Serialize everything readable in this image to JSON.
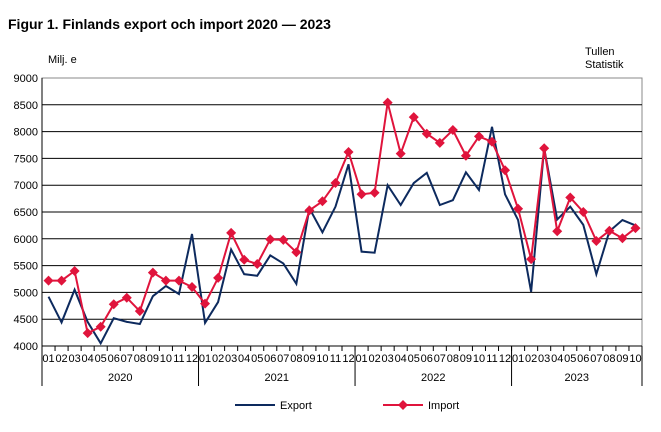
{
  "chart_data": {
    "type": "line",
    "title": "Figur 1. Finlands export och import 2020 — 2023",
    "ylabel": "Milj. e",
    "source": [
      "Tullen",
      "Statistik"
    ],
    "ylim": [
      4000,
      9000
    ],
    "yticks": [
      4000,
      4500,
      5000,
      5500,
      6000,
      6500,
      7000,
      7500,
      8000,
      8500,
      9000
    ],
    "years": [
      "2020",
      "2021",
      "2022",
      "2023"
    ],
    "months_per_year": [
      12,
      12,
      12,
      10
    ],
    "x": [
      "01",
      "02",
      "03",
      "04",
      "05",
      "06",
      "07",
      "08",
      "09",
      "10",
      "11",
      "12",
      "01",
      "02",
      "03",
      "04",
      "05",
      "06",
      "07",
      "08",
      "09",
      "10",
      "11",
      "12",
      "01",
      "02",
      "03",
      "04",
      "05",
      "06",
      "07",
      "08",
      "09",
      "10",
      "11",
      "12",
      "01",
      "02",
      "03",
      "04",
      "05",
      "06",
      "07",
      "08",
      "09",
      "10"
    ],
    "grid": true,
    "legend": "bottom",
    "series": [
      {
        "name": "Export",
        "color": "#0d2a5e",
        "marker": "none",
        "values": [
          4920,
          4440,
          5050,
          4450,
          4050,
          4520,
          4450,
          4410,
          4930,
          5120,
          4970,
          6090,
          4430,
          4820,
          5800,
          5340,
          5310,
          5690,
          5540,
          5160,
          6570,
          6120,
          6600,
          7390,
          5760,
          5740,
          7000,
          6630,
          7040,
          7230,
          6630,
          6720,
          7240,
          6910,
          8090,
          6830,
          6350,
          5010,
          7690,
          6360,
          6600,
          6260,
          5340,
          6140,
          6350,
          6250
        ]
      },
      {
        "name": "Import",
        "color": "#e0143c",
        "marker": "diamond",
        "values": [
          5220,
          5220,
          5400,
          4240,
          4360,
          4780,
          4900,
          4650,
          5370,
          5220,
          5220,
          5100,
          4790,
          5270,
          6110,
          5610,
          5530,
          5990,
          5980,
          5750,
          6530,
          6700,
          7040,
          7620,
          6830,
          6860,
          8540,
          7590,
          8270,
          7960,
          7790,
          8030,
          7550,
          7910,
          7810,
          7280,
          6560,
          5620,
          7690,
          6140,
          6770,
          6500,
          5960,
          6150,
          6010,
          6200
        ]
      }
    ]
  }
}
